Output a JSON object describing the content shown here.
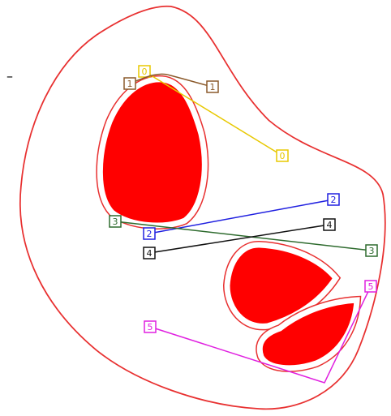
{
  "marker": "–",
  "connections": [
    {
      "start": "0",
      "end": "0",
      "color": "#e8c800"
    },
    {
      "start": "1",
      "end": "1",
      "color": "#8b5a2b"
    },
    {
      "start": "2",
      "end": "2",
      "color": "#2020e0"
    },
    {
      "start": "3",
      "end": "3",
      "color": "#2e6b2e"
    },
    {
      "start": "4",
      "end": "4",
      "color": "#111111"
    },
    {
      "start": "5",
      "end": "5",
      "color": "#e020e0"
    }
  ]
}
